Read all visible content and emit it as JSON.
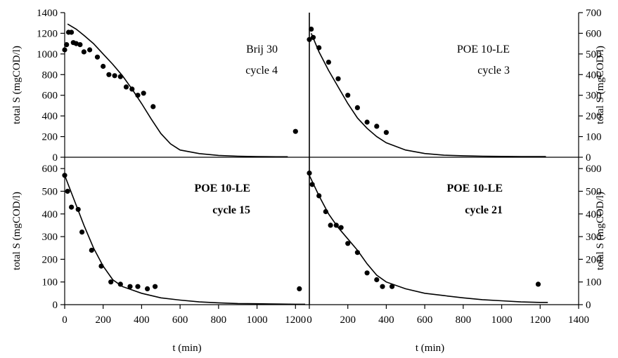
{
  "chart_data": [
    {
      "type": "scatter",
      "panel": "top-left",
      "title": "",
      "annotation": [
        "Brij  30",
        "cycle  4"
      ],
      "annotation_bold": false,
      "xlabel": "",
      "ylabel": "total S (mgCOD/l)",
      "xlim": [
        0,
        1400
      ],
      "ylim": [
        0,
        1400
      ],
      "yticks": [
        0,
        200,
        400,
        600,
        800,
        1000,
        1200,
        1400
      ],
      "xticks": [],
      "series": [
        {
          "kind": "points",
          "x": [
            0,
            10,
            20,
            35,
            45,
            60,
            80,
            100,
            130,
            170,
            200,
            230,
            260,
            290,
            320,
            350,
            380,
            410,
            460,
            1200
          ],
          "y": [
            1040,
            1090,
            1210,
            1210,
            1110,
            1100,
            1090,
            1020,
            1040,
            970,
            880,
            800,
            790,
            780,
            680,
            660,
            600,
            620,
            490,
            250
          ]
        },
        {
          "kind": "line",
          "x": [
            15,
            60,
            100,
            150,
            200,
            250,
            300,
            350,
            400,
            450,
            500,
            550,
            600,
            700,
            800,
            900,
            1000,
            1100,
            1160
          ],
          "y": [
            1290,
            1240,
            1180,
            1100,
            1000,
            900,
            790,
            660,
            520,
            370,
            230,
            130,
            70,
            35,
            18,
            10,
            6,
            5,
            5
          ]
        }
      ]
    },
    {
      "type": "scatter",
      "panel": "top-right",
      "title": "",
      "annotation": [
        "POE  10-LE",
        "cycle  3"
      ],
      "annotation_bold": false,
      "xlabel": "",
      "ylabel": "total S (mgCOD/l)",
      "xlim": [
        0,
        1400
      ],
      "ylim": [
        0,
        700
      ],
      "yticks": [
        0,
        100,
        200,
        300,
        400,
        500,
        600,
        700
      ],
      "xticks": [],
      "series": [
        {
          "kind": "points",
          "x": [
            0,
            10,
            20,
            50,
            100,
            150,
            200,
            250,
            300,
            350,
            400
          ],
          "y": [
            570,
            620,
            580,
            530,
            460,
            380,
            300,
            240,
            170,
            150,
            120
          ]
        },
        {
          "kind": "line",
          "x": [
            10,
            50,
            100,
            150,
            200,
            250,
            300,
            350,
            400,
            500,
            600,
            700,
            800,
            900,
            1000,
            1100,
            1200,
            1230
          ],
          "y": [
            600,
            510,
            420,
            340,
            260,
            190,
            140,
            100,
            70,
            35,
            18,
            10,
            7,
            5,
            4,
            3,
            3,
            3
          ]
        }
      ]
    },
    {
      "type": "scatter",
      "panel": "bottom-left",
      "title": "",
      "annotation": [
        "POE 10-LE",
        "cycle  15"
      ],
      "annotation_bold": true,
      "xlabel": "t (min)",
      "ylabel": "total S (mgCOD/l)",
      "xlim": [
        0,
        1400
      ],
      "ylim": [
        0,
        650
      ],
      "yticks": [
        0,
        100,
        200,
        300,
        400,
        500,
        600
      ],
      "xticks": [
        0,
        200,
        400,
        600,
        800,
        1000,
        1200
      ],
      "series": [
        {
          "kind": "points",
          "x": [
            0,
            15,
            35,
            70,
            90,
            140,
            190,
            240,
            290,
            340,
            380,
            430,
            470,
            1220
          ],
          "y": [
            570,
            500,
            430,
            420,
            320,
            240,
            170,
            100,
            90,
            80,
            80,
            70,
            80,
            70
          ]
        },
        {
          "kind": "line",
          "x": [
            0,
            50,
            100,
            150,
            200,
            250,
            300,
            400,
            500,
            600,
            700,
            800,
            900,
            1000,
            1100,
            1200,
            1250
          ],
          "y": [
            570,
            460,
            350,
            250,
            170,
            110,
            80,
            50,
            30,
            20,
            12,
            8,
            5,
            4,
            3,
            2,
            2
          ]
        }
      ]
    },
    {
      "type": "scatter",
      "panel": "bottom-right",
      "title": "",
      "annotation": [
        "POE 10-LE",
        "cycle  21"
      ],
      "annotation_bold": true,
      "xlabel": "t (min)",
      "ylabel": "total S (mgCOD/l)",
      "xlim": [
        0,
        1400
      ],
      "ylim": [
        0,
        650
      ],
      "yticks": [
        0,
        100,
        200,
        300,
        400,
        500,
        600
      ],
      "xticks": [
        0,
        200,
        400,
        600,
        800,
        1000,
        1200,
        1400
      ],
      "series": [
        {
          "kind": "points",
          "x": [
            0,
            15,
            50,
            85,
            110,
            140,
            165,
            200,
            250,
            300,
            350,
            380,
            430,
            1190
          ],
          "y": [
            580,
            530,
            480,
            410,
            350,
            350,
            340,
            270,
            230,
            140,
            110,
            80,
            80,
            90
          ]
        },
        {
          "kind": "line",
          "x": [
            0,
            50,
            100,
            150,
            200,
            250,
            300,
            350,
            400,
            500,
            600,
            700,
            800,
            900,
            1000,
            1100,
            1200,
            1240
          ],
          "y": [
            570,
            480,
            400,
            340,
            290,
            240,
            180,
            130,
            100,
            70,
            50,
            40,
            30,
            22,
            17,
            12,
            10,
            10
          ]
        }
      ]
    }
  ]
}
